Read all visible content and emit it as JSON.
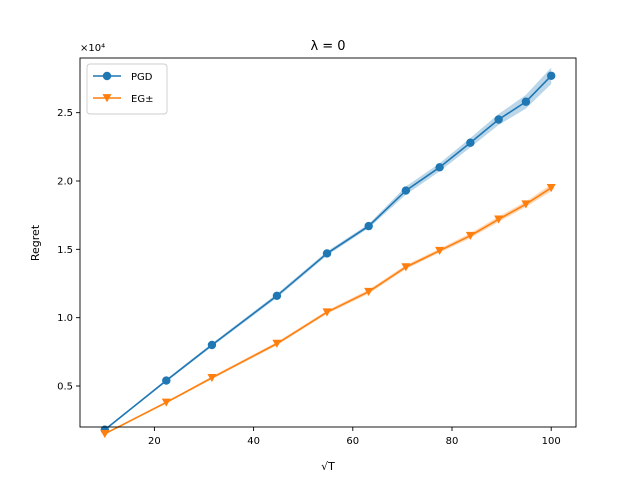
{
  "chart_data": {
    "type": "line",
    "title": "λ = 0",
    "xlabel": "√T",
    "ylabel": "Regret",
    "y_multiplier_label": "×10⁴",
    "xlim": [
      5,
      105
    ],
    "ylim": [
      0.2,
      2.9
    ],
    "x_ticks": [
      20,
      40,
      60,
      80,
      100
    ],
    "x_tick_labels": [
      "20",
      "40",
      "60",
      "80",
      "100"
    ],
    "y_ticks": [
      0.5,
      1.0,
      1.5,
      2.0,
      2.5
    ],
    "y_tick_labels": [
      "0.5",
      "1.0",
      "1.5",
      "2.0",
      "2.5"
    ],
    "grid": false,
    "legend_position": "top-left",
    "x": [
      10,
      22.4,
      31.6,
      44.7,
      54.8,
      63.2,
      70.7,
      77.5,
      83.7,
      89.4,
      94.9,
      100
    ],
    "series": [
      {
        "name": "PGD",
        "color": "#1f77b4",
        "marker": "circle",
        "values": [
          0.18,
          0.54,
          0.8,
          1.16,
          1.47,
          1.67,
          1.93,
          2.1,
          2.28,
          2.45,
          2.58,
          2.77
        ],
        "band": [
          0.005,
          0.01,
          0.012,
          0.015,
          0.015,
          0.015,
          0.03,
          0.03,
          0.035,
          0.04,
          0.05,
          0.06
        ]
      },
      {
        "name": "EG±",
        "color": "#ff7f0e",
        "marker": "triangle-down",
        "values": [
          0.15,
          0.38,
          0.56,
          0.81,
          1.04,
          1.19,
          1.37,
          1.49,
          1.6,
          1.72,
          1.83,
          1.95
        ],
        "band": [
          0.005,
          0.008,
          0.01,
          0.012,
          0.012,
          0.015,
          0.015,
          0.015,
          0.018,
          0.02,
          0.02,
          0.025
        ]
      }
    ]
  }
}
